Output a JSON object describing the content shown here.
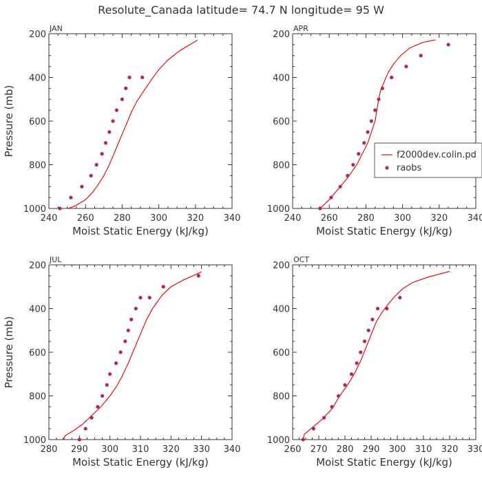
{
  "figure_title": "Resolute_Canada  latitude= 74.7 N longitude= 95 W",
  "legend": {
    "model_label": "f2000dev.colin.pd",
    "obs_label": "raobs"
  },
  "colors": {
    "model_line": "#e01010",
    "obs_points": "#b0285a",
    "axis": "#333333"
  },
  "chart_data": [
    {
      "type": "line",
      "month": "JAN",
      "title": "JAN",
      "xlabel": "Moist Static Energy (kJ/kg)",
      "ylabel": "Pressure (mb)",
      "xlim": [
        240,
        340
      ],
      "ylim": [
        1000,
        200
      ],
      "xticks": [
        "240",
        "260",
        "280",
        "300",
        "320",
        "340"
      ],
      "yticks": [
        "200",
        "400",
        "600",
        "800",
        "1000"
      ],
      "series": [
        {
          "name": "f2000dev.colin.pd",
          "style": "line",
          "x": [
            247,
            254,
            260,
            264,
            267,
            270,
            273,
            275,
            277,
            279,
            281,
            283,
            285,
            288,
            292,
            296,
            300,
            305,
            312,
            321
          ],
          "y": [
            1010,
            990,
            960,
            925,
            890,
            850,
            800,
            760,
            720,
            680,
            640,
            600,
            560,
            510,
            460,
            410,
            365,
            320,
            275,
            230
          ]
        },
        {
          "name": "raobs",
          "style": "points",
          "x": [
            246,
            252,
            258,
            263,
            266,
            269,
            271,
            273,
            275,
            277,
            280,
            282,
            284,
            291
          ],
          "y": [
            1000,
            950,
            900,
            850,
            800,
            750,
            700,
            650,
            600,
            550,
            500,
            450,
            400,
            400
          ]
        }
      ]
    },
    {
      "type": "line",
      "month": "APR",
      "title": "APR",
      "xlabel": "Moist Static Energy (kJ/kg)",
      "ylabel": "",
      "xlim": [
        240,
        340
      ],
      "ylim": [
        1000,
        200
      ],
      "xticks": [
        "240",
        "260",
        "280",
        "300",
        "320",
        "340"
      ],
      "yticks": [
        "200",
        "400",
        "600",
        "800",
        "1000"
      ],
      "series": [
        {
          "name": "f2000dev.colin.pd",
          "style": "line",
          "x": [
            255,
            260,
            265,
            270,
            275,
            278,
            281,
            283,
            285,
            286,
            287,
            288,
            290,
            292,
            295,
            299,
            304,
            311,
            318
          ],
          "y": [
            1000,
            960,
            910,
            860,
            800,
            750,
            700,
            650,
            600,
            550,
            500,
            460,
            420,
            380,
            340,
            300,
            265,
            240,
            228
          ]
        },
        {
          "name": "raobs",
          "style": "points",
          "x": [
            255,
            261,
            266,
            270,
            273,
            276,
            279,
            281,
            283,
            285,
            287,
            289,
            294,
            302,
            310,
            325
          ],
          "y": [
            1000,
            950,
            900,
            850,
            800,
            750,
            700,
            650,
            600,
            550,
            500,
            450,
            400,
            350,
            300,
            250
          ]
        }
      ]
    },
    {
      "type": "line",
      "month": "JUL",
      "title": "JUL",
      "xlabel": "Moist Static Energy (kJ/kg)",
      "ylabel": "Pressure (mb)",
      "xlim": [
        280,
        340
      ],
      "ylim": [
        1000,
        200
      ],
      "xticks": [
        "280",
        "290",
        "300",
        "310",
        "320",
        "330",
        "340"
      ],
      "yticks": [
        "200",
        "400",
        "600",
        "800",
        "1000"
      ],
      "series": [
        {
          "name": "f2000dev.colin.pd",
          "style": "line",
          "x": [
            284.2,
            285.5,
            288,
            291,
            294,
            297,
            300,
            302,
            304,
            306,
            307.5,
            309,
            310.5,
            312,
            314,
            317,
            320,
            324,
            330
          ],
          "y": [
            1005,
            980,
            960,
            930,
            890,
            850,
            800,
            760,
            710,
            650,
            600,
            550,
            500,
            450,
            400,
            340,
            300,
            270,
            232
          ]
        },
        {
          "name": "raobs",
          "style": "points",
          "x": [
            290,
            292,
            294,
            296,
            297.5,
            299,
            300,
            302,
            303.5,
            305,
            306,
            307,
            308.5,
            310,
            313,
            317.5,
            329
          ],
          "y": [
            1000,
            950,
            900,
            850,
            800,
            750,
            700,
            650,
            600,
            550,
            500,
            450,
            400,
            350,
            350,
            300,
            250
          ]
        }
      ]
    },
    {
      "type": "line",
      "month": "OCT",
      "title": "OCT",
      "xlabel": "Moist Static Energy (kJ/kg)",
      "ylabel": "",
      "xlim": [
        260,
        330
      ],
      "ylim": [
        1000,
        200
      ],
      "xticks": [
        "260",
        "270",
        "280",
        "290",
        "300",
        "310",
        "320",
        "330"
      ],
      "yticks": [
        "200",
        "400",
        "600",
        "800",
        "1000"
      ],
      "series": [
        {
          "name": "f2000dev.colin.pd",
          "style": "line",
          "x": [
            264,
            264.5,
            267,
            271,
            275,
            278,
            281,
            283.5,
            286,
            288,
            290,
            292,
            294,
            296.5,
            299,
            302,
            306,
            312,
            320
          ],
          "y": [
            1000,
            975,
            950,
            910,
            860,
            800,
            750,
            700,
            640,
            580,
            520,
            460,
            420,
            380,
            345,
            310,
            280,
            255,
            230
          ]
        },
        {
          "name": "raobs",
          "style": "points",
          "x": [
            264,
            268,
            272,
            275,
            277.5,
            280,
            282.5,
            284.5,
            286,
            287.5,
            289,
            290.5,
            292.5,
            296,
            301
          ],
          "y": [
            1000,
            950,
            900,
            850,
            800,
            750,
            700,
            650,
            600,
            550,
            500,
            450,
            400,
            400,
            350
          ]
        }
      ]
    }
  ]
}
